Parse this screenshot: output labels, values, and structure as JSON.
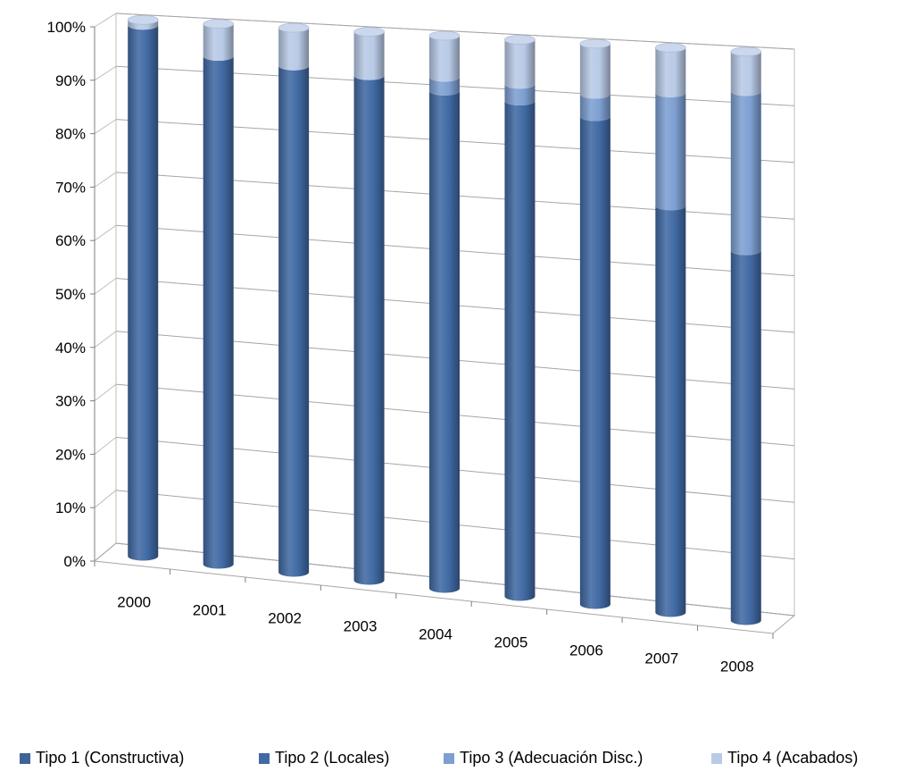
{
  "chart_data": {
    "type": "bar",
    "stacked": true,
    "percent_stacked": true,
    "three_d": true,
    "bar_shape": "cylinder",
    "categories": [
      "2000",
      "2001",
      "2002",
      "2003",
      "2004",
      "2005",
      "2006",
      "2007",
      "2008"
    ],
    "series": [
      {
        "name": "Tipo 1 (Constructiva)",
        "color": "#3d6397",
        "values": [
          0,
          0,
          0,
          0,
          0,
          0,
          0,
          0,
          0
        ]
      },
      {
        "name": "Tipo 2 (Locales)",
        "color": "#416aa4",
        "values": [
          99,
          94,
          93,
          92,
          90,
          89,
          87,
          72,
          65
        ]
      },
      {
        "name": "Tipo 3 (Adecuación Disc.)",
        "color": "#7d9fd1",
        "values": [
          0,
          0,
          0,
          0,
          2.5,
          3,
          4,
          20,
          28
        ]
      },
      {
        "name": "Tipo 4 (Acabados)",
        "color": "#b8cae6",
        "values": [
          1,
          6,
          7,
          8,
          7.5,
          8,
          9,
          8,
          7
        ]
      }
    ],
    "y_ticks": [
      "0%",
      "10%",
      "20%",
      "30%",
      "40%",
      "50%",
      "60%",
      "70%",
      "80%",
      "90%",
      "100%"
    ],
    "ylim": [
      0,
      100
    ],
    "grid": true,
    "legend_position": "bottom",
    "title": "",
    "xlabel": "",
    "ylabel": ""
  }
}
